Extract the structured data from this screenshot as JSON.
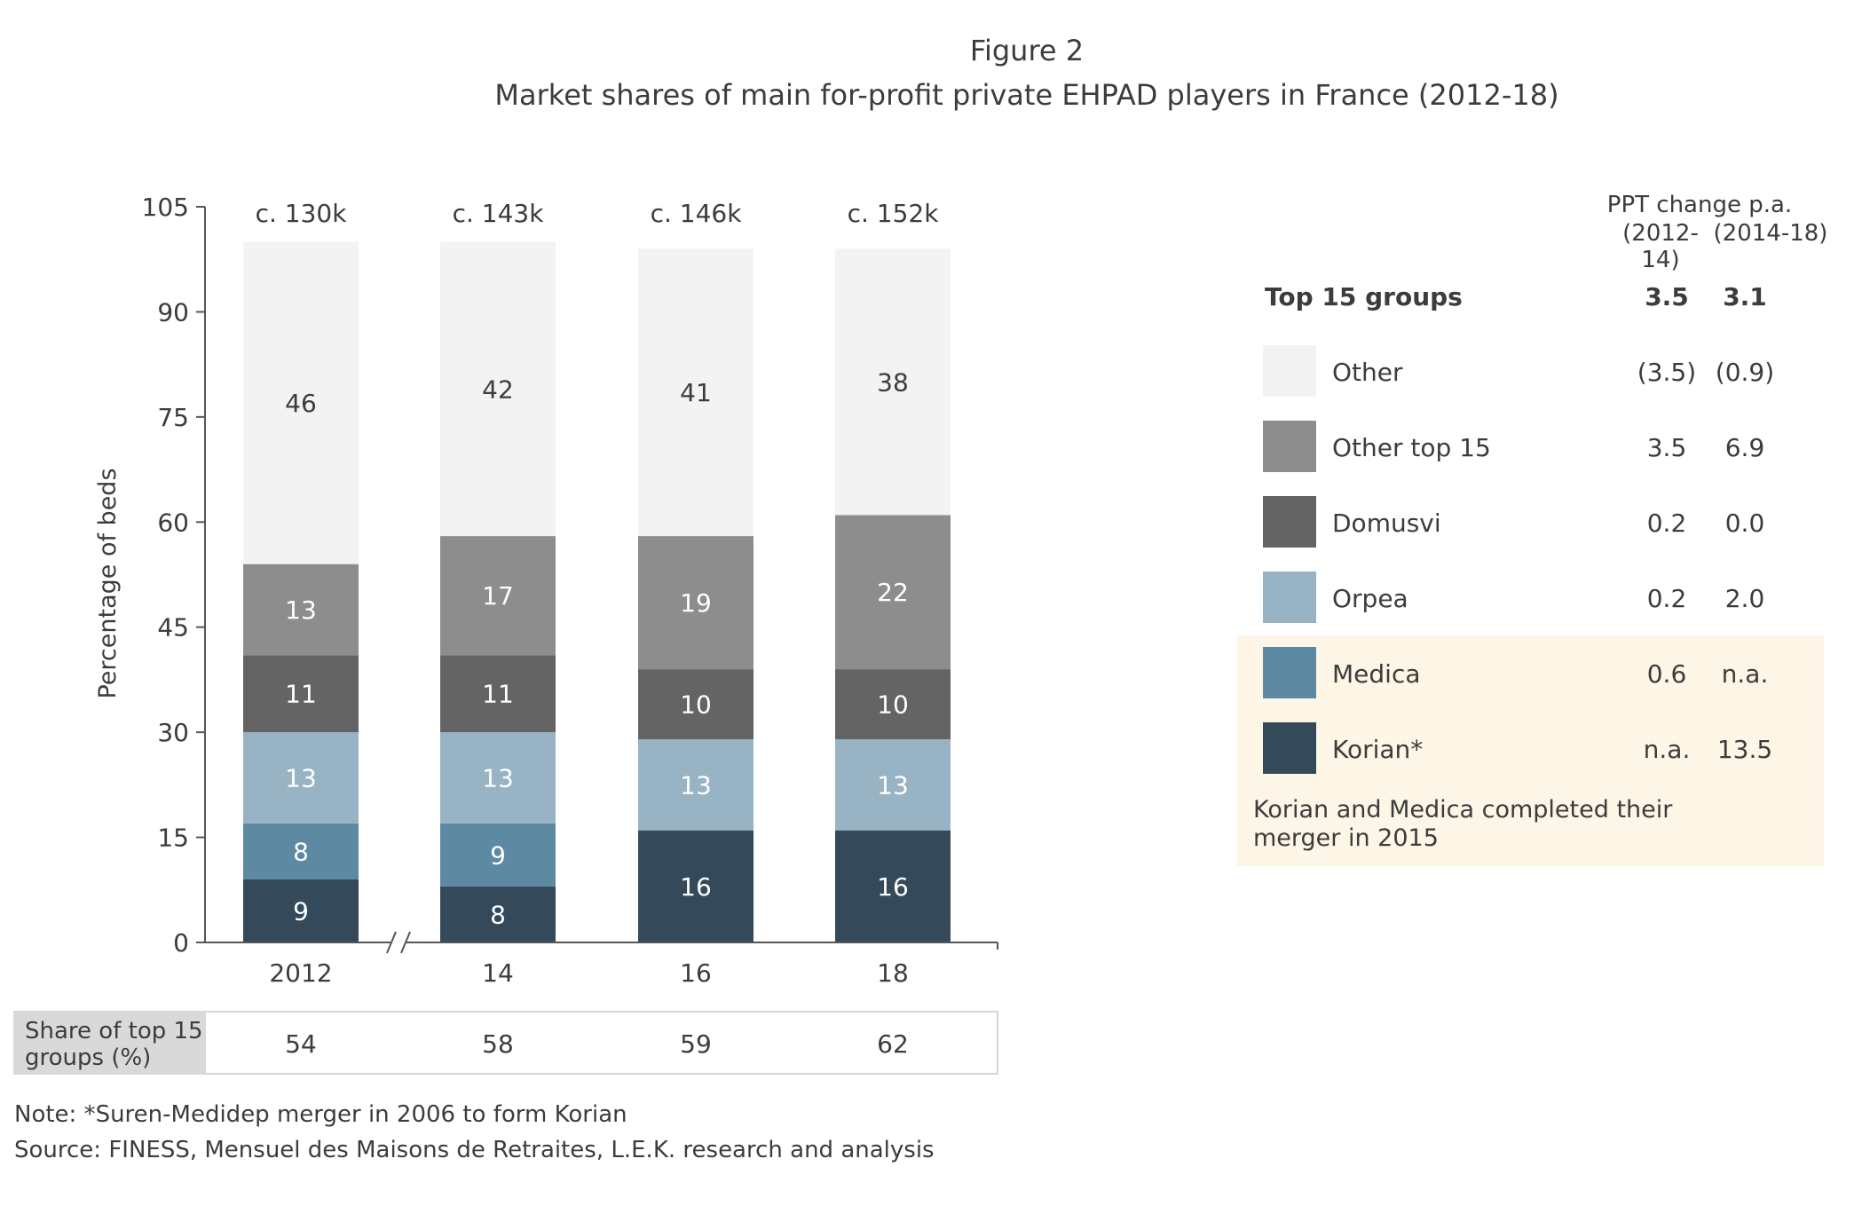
{
  "figure_label": "Figure 2",
  "title": "Market shares of main for-profit private EHPAD players in France (2012-18)",
  "chart_data": {
    "type": "bar",
    "stacked": true,
    "categories": [
      "2012",
      "14",
      "16",
      "18"
    ],
    "totals_labels": [
      "c. 130k",
      "c. 143k",
      "c. 146k",
      "c. 152k"
    ],
    "ylabel": "Percentage of beds",
    "ylim": [
      0,
      105
    ],
    "yticks": [
      0,
      15,
      30,
      45,
      60,
      75,
      90,
      105
    ],
    "series": [
      {
        "name": "Korian*",
        "color": "#344a5a",
        "values": [
          9,
          8,
          16,
          16
        ]
      },
      {
        "name": "Medica",
        "color": "#5e89a2",
        "values": [
          8,
          9,
          null,
          null
        ]
      },
      {
        "name": "Orpea",
        "color": "#98b3c4",
        "values": [
          13,
          13,
          13,
          13
        ]
      },
      {
        "name": "Domusvi",
        "color": "#646464",
        "values": [
          11,
          11,
          10,
          10
        ]
      },
      {
        "name": "Other top 15",
        "color": "#8d8d8d",
        "values": [
          13,
          17,
          19,
          22
        ]
      },
      {
        "name": "Other",
        "color": "#f3f3f3",
        "values": [
          46,
          42,
          41,
          38
        ]
      }
    ],
    "bar_label_values": {
      "Korian*": [
        "9",
        "8",
        "16",
        "16"
      ],
      "Medica": [
        "8",
        "9",
        "",
        ""
      ],
      "Orpea": [
        "13",
        "13",
        "13",
        "13"
      ],
      "Domusvi": [
        "11",
        "11",
        "10",
        "10"
      ],
      "Other top 15": [
        "13",
        "17",
        "19",
        "22"
      ],
      "Other": [
        "46",
        "42",
        "41",
        "38"
      ]
    },
    "axis_break_between": [
      "2012",
      "14"
    ]
  },
  "share_table": {
    "label_line1": "Share of top 15",
    "label_line2": "groups (%)",
    "values": [
      "54",
      "58",
      "59",
      "62"
    ]
  },
  "legend": {
    "header_line1": "PPT change p.a.",
    "header_col1": "(2012-14)",
    "header_col2": "(2014-18)",
    "top_row": {
      "label": "Top 15 groups",
      "v1": "3.5",
      "v2": "3.1"
    },
    "rows": [
      {
        "label": "Other",
        "v1": "(3.5)",
        "v2": "(0.9)",
        "color": "#f3f3f3"
      },
      {
        "label": "Other top 15",
        "v1": "3.5",
        "v2": "6.9",
        "color": "#8d8d8d"
      },
      {
        "label": "Domusvi",
        "v1": "0.2",
        "v2": "0.0",
        "color": "#646464"
      },
      {
        "label": "Orpea",
        "v1": "0.2",
        "v2": "2.0",
        "color": "#98b3c4"
      },
      {
        "label": "Medica",
        "v1": "0.6",
        "v2": "n.a.",
        "color": "#5e89a2"
      },
      {
        "label": "Korian*",
        "v1": "n.a.",
        "v2": "13.5",
        "color": "#344a5a"
      }
    ],
    "callout_line1": "Korian and Medica completed their",
    "callout_line2": "merger in 2015",
    "callout_bg": "#fdf5e5"
  },
  "notes": {
    "note": "Note: *Suren-Medidep merger in 2006 to form Korian",
    "source": "Source: FINESS, Mensuel des Maisons de Retraites, L.E.K. research and analysis"
  }
}
